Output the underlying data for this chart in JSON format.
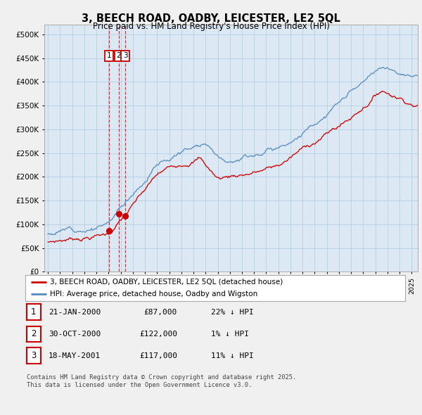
{
  "title": "3, BEECH ROAD, OADBY, LEICESTER, LE2 5QL",
  "subtitle": "Price paid vs. HM Land Registry's House Price Index (HPI)",
  "background_color": "#f0f0f0",
  "plot_bg_color": "#dce9f5",
  "ylim": [
    0,
    520000
  ],
  "yticks": [
    0,
    50000,
    100000,
    150000,
    200000,
    250000,
    300000,
    350000,
    400000,
    450000,
    500000
  ],
  "transactions": [
    {
      "label": "1",
      "date_decimal": 2000.06,
      "price": 87000
    },
    {
      "label": "2",
      "date_decimal": 2000.83,
      "price": 122000
    },
    {
      "label": "3",
      "date_decimal": 2001.38,
      "price": 117000
    }
  ],
  "transaction_table": [
    {
      "num": "1",
      "date": "21-JAN-2000",
      "price": "£87,000",
      "hpi": "22% ↓ HPI"
    },
    {
      "num": "2",
      "date": "30-OCT-2000",
      "price": "£122,000",
      "hpi": "1% ↓ HPI"
    },
    {
      "num": "3",
      "date": "18-MAY-2001",
      "price": "£117,000",
      "hpi": "11% ↓ HPI"
    }
  ],
  "legend_house_label": "3, BEECH ROAD, OADBY, LEICESTER, LE2 5QL (detached house)",
  "legend_hpi_label": "HPI: Average price, detached house, Oadby and Wigston",
  "footer_text": "Contains HM Land Registry data © Crown copyright and database right 2025.\nThis data is licensed under the Open Government Licence v3.0.",
  "line_color_house": "#cc0000",
  "line_color_hpi": "#5588bb",
  "dashed_vline_color": "#cc0000",
  "grid_color": "#b8cfe0"
}
